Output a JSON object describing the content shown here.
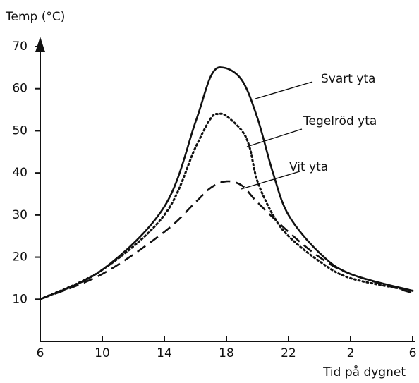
{
  "chart_data": {
    "type": "line",
    "ylabel": "Temp (°C)",
    "xlabel": "Tid på dygnet",
    "xlim": [
      6,
      30
    ],
    "xticks": [
      6,
      10,
      14,
      18,
      22,
      {
        "value": 26,
        "label": "2"
      },
      {
        "value": 30,
        "label": "6"
      }
    ],
    "ylim": [
      0,
      70
    ],
    "yticks": [
      10,
      20,
      30,
      40,
      50,
      60,
      70
    ],
    "series": [
      {
        "name": "Svart yta",
        "color": "#111111",
        "dash": "solid",
        "x": [
          6,
          10,
          14,
          16,
          17,
          17.8,
          19,
          20,
          21,
          22,
          24,
          26,
          30
        ],
        "values": [
          10,
          17,
          32,
          52,
          63,
          65,
          62,
          53,
          40,
          30,
          21,
          16,
          12
        ]
      },
      {
        "name": "Tegelröd yta",
        "color": "#111111",
        "dash": "dotted",
        "x": [
          6,
          10,
          14,
          16,
          17,
          17.5,
          18,
          19,
          19.5,
          20,
          21,
          22,
          24,
          26,
          30
        ],
        "values": [
          10,
          17,
          30,
          46,
          53,
          54,
          53.5,
          50,
          46,
          38,
          30,
          25,
          19,
          15,
          12
        ]
      },
      {
        "name": "Vit yta",
        "color": "#111111",
        "dash": "dashed",
        "x": [
          6,
          10,
          14,
          16,
          17,
          18,
          19,
          20,
          22,
          24,
          26,
          30
        ],
        "values": [
          10,
          16,
          26,
          33,
          36.5,
          38,
          37,
          33,
          26,
          20,
          16,
          11.5
        ]
      }
    ]
  }
}
